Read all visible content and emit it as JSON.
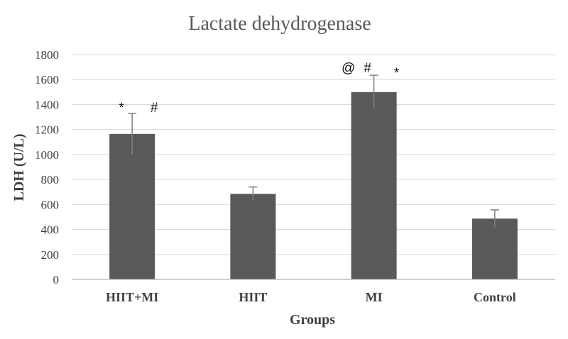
{
  "chart_data": {
    "type": "bar",
    "title": "Lactate dehydrogenase",
    "xlabel": "Groups",
    "ylabel": "LDH (U/L)",
    "categories": [
      "HIIT+MI",
      "HIIT",
      "MI",
      "Control"
    ],
    "values": [
      1165,
      685,
      1500,
      487
    ],
    "error": [
      165,
      55,
      135,
      70
    ],
    "ylim": [
      0,
      1800
    ],
    "yticks": [
      "0",
      "200",
      "400",
      "600",
      "800",
      "1000",
      "1200",
      "1400",
      "1600",
      "1800"
    ],
    "grid": true,
    "annotations": [
      {
        "category": "HIIT+MI",
        "marks": [
          "*",
          "#"
        ]
      },
      {
        "category": "MI",
        "marks": [
          "@",
          "#",
          "*"
        ]
      }
    ],
    "colors": {
      "bar": "#595959",
      "grid": "#d9d9d9",
      "axis": "#bfbfbf"
    }
  }
}
